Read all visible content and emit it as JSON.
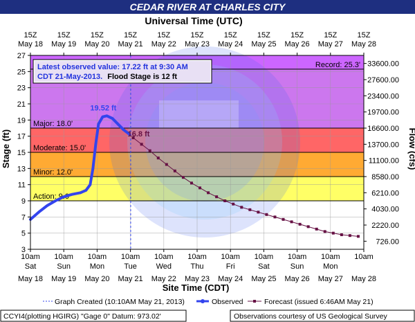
{
  "header": {
    "title": "CEDAR RIVER AT CHARLES CITY",
    "top_axis_title": "Universal Time (UTC)",
    "bottom_axis_title": "Site Time (CDT)"
  },
  "info_box": {
    "line1": "Latest observed value: 17.22 ft at 9:30 AM",
    "line2_date": "CDT 21-May-2013.",
    "line2_flood": "Flood Stage is 12 ft"
  },
  "legend": {
    "created": "Graph Created (10:10AM May 21, 2013)",
    "observed": "Observed",
    "forecast": "Forecast (issued 6:46AM May 21)"
  },
  "footer": {
    "left": "CCYI4(plotting HGIRG) \"Gage 0\" Datum: 973.02'",
    "right": "Observations courtesy of US Geological Survey"
  },
  "colors": {
    "title_bg": "#1e2f80",
    "record": "#cc66ff",
    "major": "#cc77ee",
    "moderate": "#ff6666",
    "minor": "#ffaa33",
    "action": "#ffff66",
    "observed": "#3344ee",
    "forecast": "#661144"
  },
  "chart_data": {
    "type": "line",
    "xlabel": "Site Time (CDT)",
    "ylabel": "Stage (ft)",
    "y2label": "Flow (cfs)",
    "ylim": [
      3,
      27
    ],
    "yticks": [
      3,
      5,
      7,
      9,
      11,
      13,
      15,
      17,
      19,
      21,
      23,
      25,
      27
    ],
    "flow_ticks": [
      {
        "stage": 4,
        "label": "726.00"
      },
      {
        "stage": 6,
        "label": "2220.00"
      },
      {
        "stage": 8,
        "label": "4030.00"
      },
      {
        "stage": 10,
        "label": "6210.00"
      },
      {
        "stage": 12,
        "label": "8580.00"
      },
      {
        "stage": 14,
        "label": "11100.00"
      },
      {
        "stage": 16,
        "label": "13700.00"
      },
      {
        "stage": 18,
        "label": "16600.00"
      },
      {
        "stage": 20,
        "label": "19700.00"
      },
      {
        "stage": 22,
        "label": "23400.00"
      },
      {
        "stage": 24,
        "label": "27600.00"
      },
      {
        "stage": 26,
        "label": "33600.00"
      }
    ],
    "xlim": [
      "2013-05-18 10:00",
      "2013-05-28 10:00"
    ],
    "bottom_ticks": [
      {
        "time": "10am",
        "day": "Sat",
        "date": "May 18"
      },
      {
        "time": "10am",
        "day": "Sun",
        "date": "May 19"
      },
      {
        "time": "10am",
        "day": "Mon",
        "date": "May 20"
      },
      {
        "time": "10am",
        "day": "Tue",
        "date": "May 21"
      },
      {
        "time": "10am",
        "day": "Wed",
        "date": "May 22"
      },
      {
        "time": "10am",
        "day": "Thu",
        "date": "May 23"
      },
      {
        "time": "10am",
        "day": "Fri",
        "date": "May 24"
      },
      {
        "time": "10am",
        "day": "Sat",
        "date": "May 25"
      },
      {
        "time": "10am",
        "day": "Sun",
        "date": "May 26"
      },
      {
        "time": "10am",
        "day": "Mon",
        "date": "May 27"
      },
      {
        "time": "10am",
        "day": "",
        "date": "May 28"
      }
    ],
    "top_ticks": [
      {
        "time": "15Z",
        "date": "May 18"
      },
      {
        "time": "15Z",
        "date": "May 19"
      },
      {
        "time": "15Z",
        "date": "May 20"
      },
      {
        "time": "15Z",
        "date": "May 21"
      },
      {
        "time": "15Z",
        "date": "May 22"
      },
      {
        "time": "15Z",
        "date": "May 23"
      },
      {
        "time": "15Z",
        "date": "May 24"
      },
      {
        "time": "15Z",
        "date": "May 25"
      },
      {
        "time": "15Z",
        "date": "May 26"
      },
      {
        "time": "15Z",
        "date": "May 27"
      },
      {
        "time": "15Z",
        "date": "May 28"
      }
    ],
    "flood_levels": [
      {
        "name": "record",
        "label": "Record: 25.3'",
        "stage": 25.3
      },
      {
        "name": "major",
        "label": "Major: 18.0'",
        "stage": 18.0
      },
      {
        "name": "moderate",
        "label": "Moderate: 15.0'",
        "stage": 15.0
      },
      {
        "name": "minor",
        "label": "Minor: 12.0'",
        "stage": 12.0
      },
      {
        "name": "action",
        "label": "Action: 9.0'",
        "stage": 9.0
      }
    ],
    "graph_created": "2013-05-21 10:10",
    "annotations": [
      {
        "label": "19.52 ft",
        "time": "2013-05-20 12:00",
        "stage": 19.52
      },
      {
        "label": "16.8 ft",
        "time": "2013-05-21 12:00",
        "stage": 16.8
      }
    ],
    "observed": [
      [
        "2013-05-18 10:00",
        6.7
      ],
      [
        "2013-05-18 16:00",
        7.6
      ],
      [
        "2013-05-18 22:00",
        8.4
      ],
      [
        "2013-05-19 04:00",
        9.0
      ],
      [
        "2013-05-19 10:00",
        9.5
      ],
      [
        "2013-05-19 16:00",
        9.8
      ],
      [
        "2013-05-19 22:00",
        10.0
      ],
      [
        "2013-05-20 02:00",
        10.3
      ],
      [
        "2013-05-20 05:00",
        11.0
      ],
      [
        "2013-05-20 07:00",
        13.0
      ],
      [
        "2013-05-20 09:00",
        16.0
      ],
      [
        "2013-05-20 11:00",
        18.5
      ],
      [
        "2013-05-20 14:00",
        19.4
      ],
      [
        "2013-05-20 17:00",
        19.52
      ],
      [
        "2013-05-20 21:00",
        19.2
      ],
      [
        "2013-05-21 01:00",
        18.5
      ],
      [
        "2013-05-21 05:00",
        17.8
      ],
      [
        "2013-05-21 09:30",
        17.22
      ]
    ],
    "forecast": [
      [
        "2013-05-21 12:00",
        16.8
      ],
      [
        "2013-05-21 18:00",
        16.0
      ],
      [
        "2013-05-22 00:00",
        15.2
      ],
      [
        "2013-05-22 06:00",
        14.3
      ],
      [
        "2013-05-22 12:00",
        13.5
      ],
      [
        "2013-05-22 18:00",
        12.7
      ],
      [
        "2013-05-23 00:00",
        11.9
      ],
      [
        "2013-05-23 06:00",
        11.2
      ],
      [
        "2013-05-23 12:00",
        10.6
      ],
      [
        "2013-05-23 18:00",
        10.0
      ],
      [
        "2013-05-24 00:00",
        9.5
      ],
      [
        "2013-05-24 06:00",
        9.0
      ],
      [
        "2013-05-24 12:00",
        8.6
      ],
      [
        "2013-05-24 18:00",
        8.2
      ],
      [
        "2013-05-25 00:00",
        7.9
      ],
      [
        "2013-05-25 06:00",
        7.6
      ],
      [
        "2013-05-25 12:00",
        7.3
      ],
      [
        "2013-05-25 18:00",
        7.0
      ],
      [
        "2013-05-26 00:00",
        6.7
      ],
      [
        "2013-05-26 06:00",
        6.4
      ],
      [
        "2013-05-26 12:00",
        6.1
      ],
      [
        "2013-05-26 18:00",
        5.8
      ],
      [
        "2013-05-27 00:00",
        5.5
      ],
      [
        "2013-05-27 06:00",
        5.2
      ],
      [
        "2013-05-27 12:00",
        5.0
      ],
      [
        "2013-05-27 18:00",
        4.8
      ],
      [
        "2013-05-28 00:00",
        4.7
      ],
      [
        "2013-05-28 06:00",
        4.6
      ]
    ]
  }
}
